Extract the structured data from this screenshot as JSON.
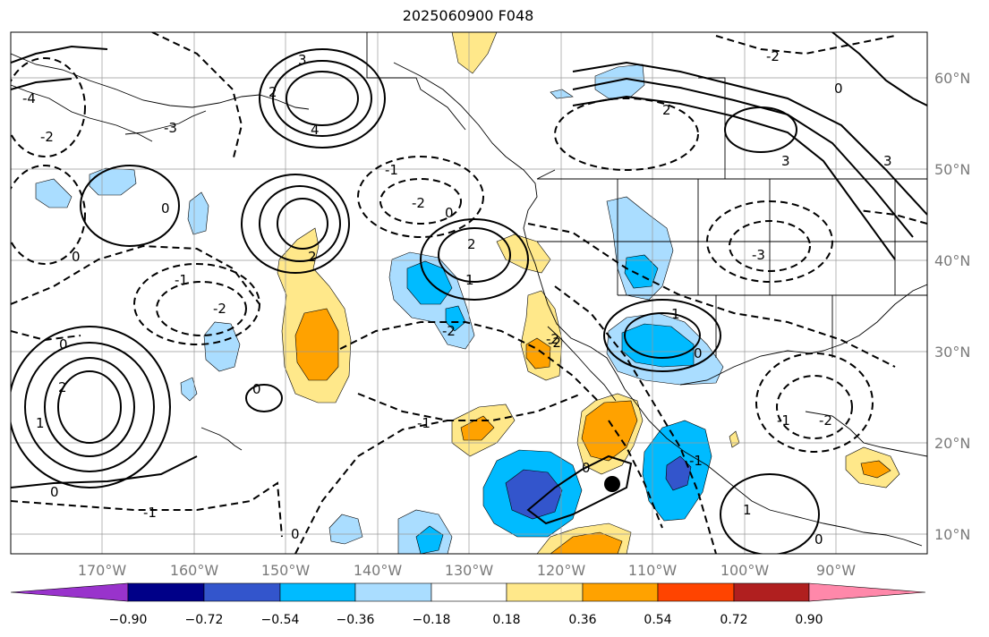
{
  "title": "2025060900 F048",
  "map": {
    "type": "weather-map",
    "lon_range": [
      -180,
      -80
    ],
    "lat_range": [
      8,
      65
    ],
    "grid": true,
    "lon_labels": [
      "170°W",
      "160°W",
      "150°W",
      "140°W",
      "130°W",
      "120°W",
      "110°W",
      "100°W",
      "90°W"
    ],
    "lat_labels": [
      "60°N",
      "50°N",
      "40°N",
      "30°N",
      "20°N",
      "10°N"
    ],
    "marker_color": "#000000",
    "coastline_color": "#000000"
  },
  "colorbar": {
    "colors": [
      "#9933cc",
      "#000088",
      "#3355cc",
      "#00bbff",
      "#aaddff",
      "#ffffff",
      "#ffe88a",
      "#ffa200",
      "#ff4400",
      "#b01f1f",
      "#ff88aa"
    ],
    "tick_labels": [
      "−0.90",
      "−0.72",
      "−0.54",
      "−0.36",
      "−0.18",
      "0.18",
      "0.36",
      "0.54",
      "0.72",
      "0.90"
    ],
    "extend": "both"
  },
  "contour_labels": [
    "-2",
    "-1",
    "0",
    "1",
    "2",
    "3",
    "4",
    "-3",
    "-4"
  ]
}
